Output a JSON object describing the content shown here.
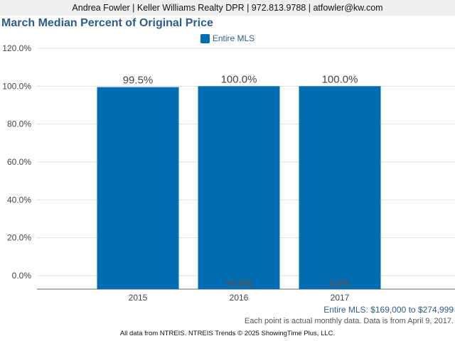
{
  "header": {
    "contact_line": "Andrea Fowler | Keller Williams Realty DPR | 972.813.9788 | atfowler@kw.com"
  },
  "chart_data": {
    "type": "bar",
    "title": "March Median Percent of Original Price",
    "categories": [
      "2015",
      "2016",
      "2017"
    ],
    "series": [
      {
        "name": "Entire MLS",
        "values": [
          99.5,
          100.0,
          100.0
        ],
        "labels": [
          "99.5%",
          "100.0%",
          "100.0%"
        ],
        "changes": [
          "",
          "+0.5%",
          "0.0%"
        ],
        "color": "#006db3"
      }
    ],
    "ylim": [
      0,
      120
    ],
    "yticks": [
      0,
      20,
      40,
      60,
      80,
      100,
      120
    ],
    "ytick_labels": [
      "0.0%",
      "20.0%",
      "40.0%",
      "60.0%",
      "80.0%",
      "100.0%",
      "120.0%"
    ],
    "xlabel": "",
    "ylabel": "",
    "grid": true,
    "legend_position": "top-center"
  },
  "footer": {
    "price_range": "Entire MLS: $169,000 to $274,999",
    "note": "Each point is actual monthly data. Data is from April 9, 2017.",
    "source": "All data from NTREIS. NTREIS Trends © 2025 ShowingTime Plus, LLC."
  }
}
